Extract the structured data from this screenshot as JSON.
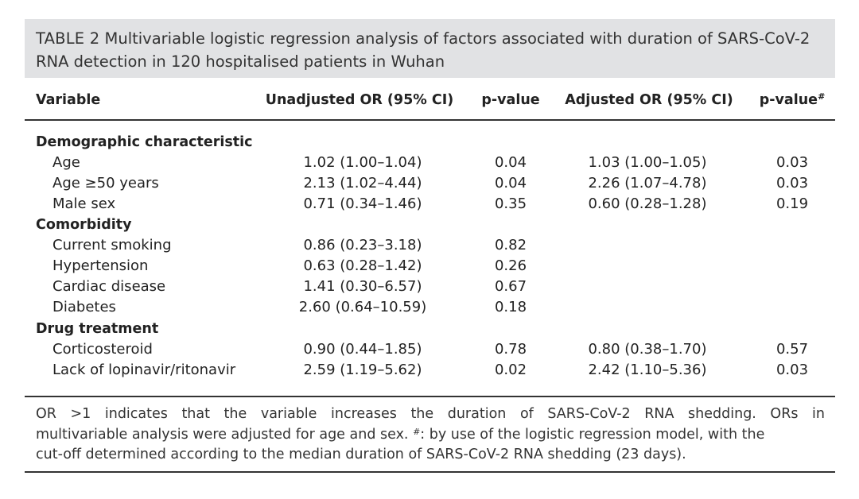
{
  "caption": {
    "label": "TABLE 2",
    "text": " Multivariable logistic regression analysis of factors associated with duration of SARS-CoV-2 RNA detection in 120 hospitalised patients in Wuhan"
  },
  "headers": {
    "variable": "Variable",
    "unadjusted_or": "Unadjusted OR (95% CI)",
    "p_value": "p-value",
    "adjusted_or": "Adjusted OR (95% CI)",
    "p_value_adj": "p-value",
    "p_value_adj_mark": "#"
  },
  "groups": [
    {
      "title": "Demographic characteristic",
      "rows": [
        {
          "variable": "Age",
          "unadjusted_or": "1.02 (1.00–1.04)",
          "p_value": "0.04",
          "adjusted_or": "1.03 (1.00–1.05)",
          "p_value_adj": "0.03"
        },
        {
          "variable": "Age ≥50 years",
          "unadjusted_or": "2.13 (1.02–4.44)",
          "p_value": "0.04",
          "adjusted_or": "2.26 (1.07–4.78)",
          "p_value_adj": "0.03"
        },
        {
          "variable": "Male sex",
          "unadjusted_or": "0.71 (0.34–1.46)",
          "p_value": "0.35",
          "adjusted_or": "0.60 (0.28–1.28)",
          "p_value_adj": "0.19"
        }
      ]
    },
    {
      "title": "Comorbidity",
      "rows": [
        {
          "variable": "Current smoking",
          "unadjusted_or": "0.86 (0.23–3.18)",
          "p_value": "0.82",
          "adjusted_or": "",
          "p_value_adj": ""
        },
        {
          "variable": "Hypertension",
          "unadjusted_or": "0.63 (0.28–1.42)",
          "p_value": "0.26",
          "adjusted_or": "",
          "p_value_adj": ""
        },
        {
          "variable": "Cardiac disease",
          "unadjusted_or": "1.41 (0.30–6.57)",
          "p_value": "0.67",
          "adjusted_or": "",
          "p_value_adj": ""
        },
        {
          "variable": "Diabetes",
          "unadjusted_or": "2.60 (0.64–10.59)",
          "p_value": "0.18",
          "adjusted_or": "",
          "p_value_adj": ""
        }
      ]
    },
    {
      "title": "Drug treatment",
      "rows": [
        {
          "variable": "Corticosteroid",
          "unadjusted_or": "0.90 (0.44–1.85)",
          "p_value": "0.78",
          "adjusted_or": "0.80 (0.38–1.70)",
          "p_value_adj": "0.57"
        },
        {
          "variable": "Lack of lopinavir/ritonavir",
          "unadjusted_or": "2.59 (1.19–5.62)",
          "p_value": "0.02",
          "adjusted_or": "2.42 (1.10–5.36)",
          "p_value_adj": "0.03"
        }
      ]
    }
  ],
  "footnote": {
    "line1": "OR >1 indicates that the variable increases the duration of SARS-CoV-2 RNA shedding. ORs in",
    "line2a": "multivariable analysis were adjusted for age and sex. ",
    "line2_mark": "#",
    "line2b": ": by use of the logistic regression model, with the",
    "line3": "cut-off determined according to the median duration of SARS-CoV-2 RNA shedding (23 days)."
  }
}
